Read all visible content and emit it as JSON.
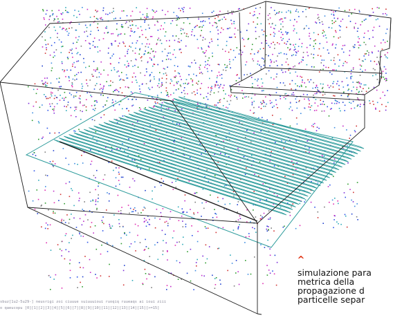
{
  "visualization": {
    "caret_icon": "caret-up-icon",
    "caret_glyph": "^",
    "caption_lines": [
      "simulazione para",
      "metrica della",
      "propagazione d",
      "particelle separ"
    ],
    "legend_line_1": "sbuz[1u2-5u29-] neusrigi zoi ciuuue suiuuuioui ruoqiq ruueaqs ai ioui ziii",
    "legend_line_2": "o qaeucopu [0][1][2][3][4][5][6][7][8][9][10][11][12][13][14][15][>=15]",
    "colors": {
      "box_edges": "#1a1a1a",
      "ribbon": "#2a9a9a",
      "caret": "#e03010",
      "particles": [
        "#1f3fd0",
        "#2a52e8",
        "#7a2ad8",
        "#c02ac8",
        "#e02ab0",
        "#2a9a2a",
        "#2aa8b8",
        "#7a7a7a",
        "#d03030",
        "#3a8ae0"
      ]
    }
  }
}
